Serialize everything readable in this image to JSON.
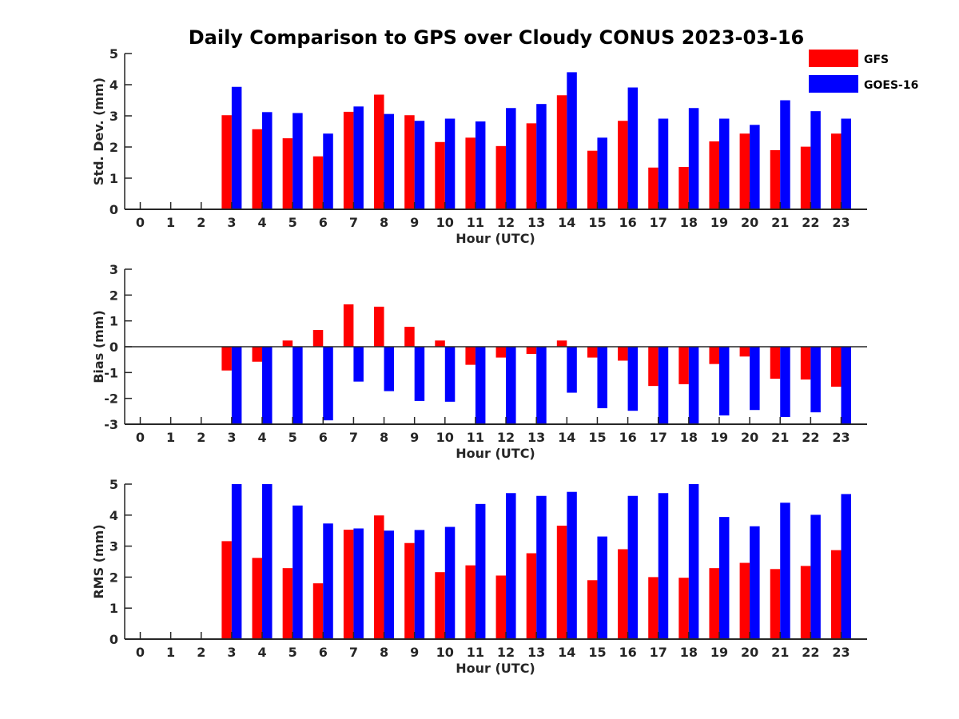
{
  "title": "Daily Comparison to GPS over Cloudy CONUS 2023-03-16",
  "legend": [
    {
      "name": "GFS",
      "color": "#ff0000"
    },
    {
      "name": "GOES-16",
      "color": "#0000ff"
    }
  ],
  "chart_data": [
    {
      "type": "bar",
      "title": "",
      "xlabel": "Hour (UTC)",
      "ylabel": "Std. Dev. (mm)",
      "ylim": [
        0,
        5
      ],
      "yticks": [
        "0",
        "1",
        "2",
        "3",
        "4",
        "5"
      ],
      "categories": [
        "0",
        "1",
        "2",
        "3",
        "4",
        "5",
        "6",
        "7",
        "8",
        "9",
        "10",
        "11",
        "12",
        "13",
        "14",
        "15",
        "16",
        "17",
        "18",
        "19",
        "20",
        "21",
        "22",
        "23"
      ],
      "series": [
        {
          "name": "GFS",
          "values": [
            null,
            null,
            null,
            3.02,
            2.57,
            2.28,
            1.7,
            3.13,
            3.68,
            3.02,
            2.16,
            2.3,
            2.03,
            2.76,
            3.66,
            1.88,
            2.84,
            1.34,
            1.36,
            2.18,
            2.43,
            1.9,
            2.01,
            2.43
          ]
        },
        {
          "name": "GOES-16",
          "values": [
            null,
            null,
            null,
            3.93,
            3.12,
            3.09,
            2.43,
            3.3,
            3.06,
            2.84,
            2.91,
            2.82,
            3.25,
            3.38,
            4.4,
            2.3,
            3.91,
            2.91,
            3.25,
            2.91,
            2.71,
            3.5,
            3.15,
            2.91
          ]
        }
      ]
    },
    {
      "type": "bar",
      "title": "",
      "xlabel": "Hour (UTC)",
      "ylabel": "Bias (mm)",
      "ylim": [
        -3,
        3
      ],
      "yticks": [
        "-3",
        "-2",
        "-1",
        "0",
        "1",
        "2",
        "3"
      ],
      "categories": [
        "0",
        "1",
        "2",
        "3",
        "4",
        "5",
        "6",
        "7",
        "8",
        "9",
        "10",
        "11",
        "12",
        "13",
        "14",
        "15",
        "16",
        "17",
        "18",
        "19",
        "20",
        "21",
        "22",
        "23"
      ],
      "series": [
        {
          "name": "GFS",
          "values": [
            null,
            null,
            null,
            -0.92,
            -0.58,
            0.24,
            0.65,
            1.64,
            1.55,
            0.77,
            0.24,
            -0.7,
            -0.42,
            -0.28,
            0.24,
            -0.42,
            -0.54,
            -1.52,
            -1.45,
            -0.67,
            -0.38,
            -1.24,
            -1.27,
            -1.55
          ]
        },
        {
          "name": "GOES-16",
          "values": [
            null,
            null,
            null,
            -3.0,
            -3.0,
            -3.0,
            -2.85,
            -1.35,
            -1.72,
            -2.1,
            -2.13,
            -3.0,
            -3.0,
            -3.0,
            -1.78,
            -2.38,
            -2.48,
            -3.0,
            -3.0,
            -2.66,
            -2.45,
            -2.72,
            -2.54,
            -3.0
          ]
        }
      ]
    },
    {
      "type": "bar",
      "title": "",
      "xlabel": "Hour (UTC)",
      "ylabel": "RMS (mm)",
      "ylim": [
        0,
        5
      ],
      "yticks": [
        "0",
        "1",
        "2",
        "3",
        "4",
        "5"
      ],
      "categories": [
        "0",
        "1",
        "2",
        "3",
        "4",
        "5",
        "6",
        "7",
        "8",
        "9",
        "10",
        "11",
        "12",
        "13",
        "14",
        "15",
        "16",
        "17",
        "18",
        "19",
        "20",
        "21",
        "22",
        "23"
      ],
      "series": [
        {
          "name": "GFS",
          "values": [
            null,
            null,
            null,
            3.16,
            2.62,
            2.29,
            1.8,
            3.53,
            3.99,
            3.1,
            2.16,
            2.38,
            2.05,
            2.77,
            3.66,
            1.9,
            2.9,
            2.0,
            1.98,
            2.29,
            2.46,
            2.26,
            2.36,
            2.87
          ]
        },
        {
          "name": "GOES-16",
          "values": [
            null,
            null,
            null,
            5.0,
            5.0,
            4.31,
            3.73,
            3.57,
            3.5,
            3.52,
            3.62,
            4.36,
            4.71,
            4.62,
            4.75,
            3.31,
            4.62,
            4.71,
            5.0,
            3.94,
            3.64,
            4.4,
            4.01,
            4.68
          ]
        }
      ]
    }
  ]
}
